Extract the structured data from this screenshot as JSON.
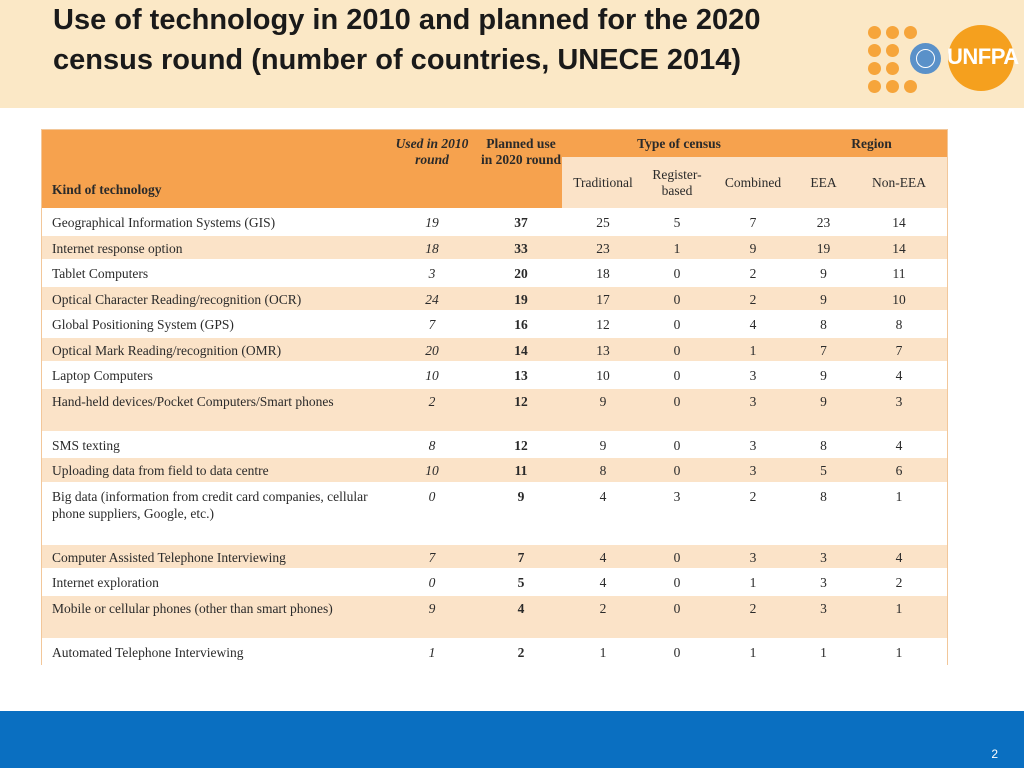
{
  "slide": {
    "title": "Use of technology in 2010 and planned for the 2020 census round (number of countries, UNECE 2014)",
    "logo_text": "UNFPA",
    "page_number": "2",
    "colors": {
      "title_band": "#fbe8c6",
      "header_orange": "#f6a24e",
      "row_tint": "#fbe3c8",
      "footer_blue": "#0a6fc1",
      "logo_orange": "#f5a01e",
      "un_blue": "#5a91c9"
    },
    "icons": [
      "unfpa-dot-grid-icon",
      "un-emblem-icon"
    ]
  },
  "table": {
    "headers": {
      "kind": "Kind of technology",
      "used_2010": "Used in 2010 round",
      "planned_2020": "Planned use in 2020 round",
      "type_of_census": "Type of census",
      "region": "Region",
      "traditional": "Traditional",
      "register_based": "Register-based",
      "combined": "Combined",
      "eea": "EEA",
      "non_eea": "Non-EEA"
    },
    "rows": [
      {
        "kind": "Geographical Information Systems (GIS)",
        "used": "19",
        "planned": "37",
        "trad": "25",
        "reg": "5",
        "comb": "7",
        "eea": "23",
        "non": "14"
      },
      {
        "kind": "Internet response option",
        "used": "18",
        "planned": "33",
        "trad": "23",
        "reg": "1",
        "comb": "9",
        "eea": "19",
        "non": "14"
      },
      {
        "kind": "Tablet Computers",
        "used": "3",
        "planned": "20",
        "trad": "18",
        "reg": "0",
        "comb": "2",
        "eea": "9",
        "non": "11"
      },
      {
        "kind": "Optical Character Reading/recognition (OCR)",
        "used": "24",
        "planned": "19",
        "trad": "17",
        "reg": "0",
        "comb": "2",
        "eea": "9",
        "non": "10"
      },
      {
        "kind": "Global Positioning System (GPS)",
        "used": "7",
        "planned": "16",
        "trad": "12",
        "reg": "0",
        "comb": "4",
        "eea": "8",
        "non": "8"
      },
      {
        "kind": "Optical Mark Reading/recognition (OMR)",
        "used": "20",
        "planned": "14",
        "trad": "13",
        "reg": "0",
        "comb": "1",
        "eea": "7",
        "non": "7"
      },
      {
        "kind": "Laptop Computers",
        "used": "10",
        "planned": "13",
        "trad": "10",
        "reg": "0",
        "comb": "3",
        "eea": "9",
        "non": "4"
      },
      {
        "kind": "Hand-held devices/Pocket Computers/Smart phones",
        "used": "2",
        "planned": "12",
        "trad": "9",
        "reg": "0",
        "comb": "3",
        "eea": "9",
        "non": "3"
      },
      {
        "kind": "SMS texting",
        "used": "8",
        "planned": "12",
        "trad": "9",
        "reg": "0",
        "comb": "3",
        "eea": "8",
        "non": "4"
      },
      {
        "kind": "Uploading data from field to data centre",
        "used": "10",
        "planned": "11",
        "trad": "8",
        "reg": "0",
        "comb": "3",
        "eea": "5",
        "non": "6"
      },
      {
        "kind": "Big data (information from credit card companies, cellular phone suppliers, Google, etc.)",
        "used": "0",
        "planned": "9",
        "trad": "4",
        "reg": "3",
        "comb": "2",
        "eea": "8",
        "non": "1"
      },
      {
        "kind": "Computer Assisted Telephone Interviewing",
        "used": "7",
        "planned": "7",
        "trad": "4",
        "reg": "0",
        "comb": "3",
        "eea": "3",
        "non": "4"
      },
      {
        "kind": "Internet exploration",
        "used": "0",
        "planned": "5",
        "trad": "4",
        "reg": "0",
        "comb": "1",
        "eea": "3",
        "non": "2"
      },
      {
        "kind": "Mobile or cellular phones (other than smart phones)",
        "used": "9",
        "planned": "4",
        "trad": "2",
        "reg": "0",
        "comb": "2",
        "eea": "3",
        "non": "1"
      },
      {
        "kind": "Automated Telephone Interviewing",
        "used": "1",
        "planned": "2",
        "trad": "1",
        "reg": "0",
        "comb": "1",
        "eea": "1",
        "non": "1"
      }
    ]
  }
}
